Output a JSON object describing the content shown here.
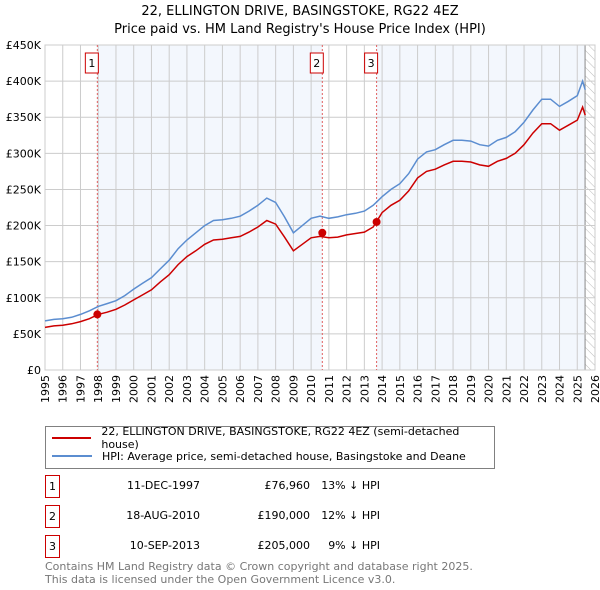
{
  "chart_data": {
    "type": "line",
    "title": "22, ELLINGTON DRIVE, BASINGSTOKE, RG22 4EZ",
    "subtitle": "Price paid vs. HM Land Registry's House Price Index (HPI)",
    "xlim": [
      1995,
      2026
    ],
    "ylim": [
      0,
      450000
    ],
    "y_ticks": [
      {
        "v": 0,
        "label": "£0"
      },
      {
        "v": 50000,
        "label": "£50K"
      },
      {
        "v": 100000,
        "label": "£100K"
      },
      {
        "v": 150000,
        "label": "£150K"
      },
      {
        "v": 200000,
        "label": "£200K"
      },
      {
        "v": 250000,
        "label": "£250K"
      },
      {
        "v": 300000,
        "label": "£300K"
      },
      {
        "v": 350000,
        "label": "£350K"
      },
      {
        "v": 400000,
        "label": "£400K"
      },
      {
        "v": 450000,
        "label": "£450K"
      }
    ],
    "x_ticks": [
      "1995",
      "1996",
      "1997",
      "1998",
      "1999",
      "2000",
      "2001",
      "2002",
      "2003",
      "2004",
      "2005",
      "2006",
      "2007",
      "2008",
      "2009",
      "2010",
      "2011",
      "2012",
      "2013",
      "2014",
      "2015",
      "2016",
      "2017",
      "2018",
      "2019",
      "2020",
      "2021",
      "2022",
      "2023",
      "2024",
      "2025",
      "2026"
    ],
    "grid": true,
    "forecast_start": 2025.44,
    "x": [
      1995,
      1995.5,
      1996,
      1996.5,
      1997,
      1997.5,
      1998,
      1998.5,
      1999,
      1999.5,
      2000,
      2000.5,
      2001,
      2001.5,
      2002,
      2002.5,
      2003,
      2003.5,
      2004,
      2004.5,
      2005,
      2005.5,
      2006,
      2006.5,
      2007,
      2007.5,
      2008,
      2008.5,
      2009,
      2009.5,
      2010,
      2010.5,
      2011,
      2011.5,
      2012,
      2012.5,
      2013,
      2013.5,
      2014,
      2014.5,
      2015,
      2015.5,
      2016,
      2016.5,
      2017,
      2017.5,
      2018,
      2018.5,
      2019,
      2019.5,
      2020,
      2020.5,
      2021,
      2021.5,
      2022,
      2022.5,
      2023,
      2023.5,
      2024,
      2024.5,
      2025,
      2025.3,
      2025.45
    ],
    "series": [
      {
        "name": "22, ELLINGTON DRIVE, BASINGSTOKE, RG22 4EZ (semi-detached house)",
        "color": "#cc0000",
        "values": [
          59000,
          61000,
          62000,
          64000,
          67000,
          71000,
          77000,
          80000,
          84000,
          90000,
          97000,
          104000,
          111000,
          122000,
          132000,
          146000,
          157000,
          165000,
          174000,
          180000,
          181000,
          183000,
          185000,
          191000,
          198000,
          207000,
          202000,
          184000,
          165000,
          174000,
          183000,
          185000,
          183000,
          184000,
          187000,
          189000,
          191000,
          198000,
          218000,
          228000,
          235000,
          248000,
          266000,
          275000,
          278000,
          284000,
          289000,
          289000,
          288000,
          284000,
          282000,
          289000,
          293000,
          300000,
          312000,
          328000,
          341000,
          341000,
          332000,
          339000,
          346000,
          364000,
          353000
        ]
      },
      {
        "name": "HPI: Average price, semi-detached house, Basingstoke and Deane",
        "color": "#5b8dd0",
        "values": [
          68000,
          70000,
          71000,
          73000,
          77000,
          82000,
          88000,
          92000,
          96000,
          103000,
          112000,
          120000,
          128000,
          140000,
          152000,
          168000,
          180000,
          190000,
          200000,
          207000,
          208000,
          210000,
          213000,
          220000,
          228000,
          238000,
          232000,
          212000,
          190000,
          200000,
          210000,
          213000,
          210000,
          212000,
          215000,
          217000,
          220000,
          228000,
          240000,
          250000,
          258000,
          272000,
          292000,
          302000,
          305000,
          312000,
          318000,
          318000,
          317000,
          312000,
          310000,
          318000,
          322000,
          330000,
          343000,
          360000,
          375000,
          375000,
          365000,
          372000,
          380000,
          400000,
          388000
        ]
      }
    ],
    "sales": [
      {
        "id": "1",
        "x": 1997.95,
        "y": 76960,
        "date": "11-DEC-1997",
        "price": "£76,960",
        "hpi": "13% ↓ HPI"
      },
      {
        "id": "2",
        "x": 2010.63,
        "y": 190000,
        "date": "18-AUG-2010",
        "price": "£190,000",
        "hpi": "12% ↓ HPI"
      },
      {
        "id": "3",
        "x": 2013.69,
        "y": 205000,
        "date": "10-SEP-2013",
        "price": "£205,000",
        "hpi": "9% ↓ HPI"
      }
    ]
  },
  "legend": {
    "property": "22, ELLINGTON DRIVE, BASINGSTOKE, RG22 4EZ (semi-detached house)",
    "hpi": "HPI: Average price, semi-detached house, Basingstoke and Deane"
  },
  "footer": {
    "line1": "Contains HM Land Registry data © Crown copyright and database right 2025.",
    "line2": "This data is licensed under the Open Government Licence v3.0."
  }
}
